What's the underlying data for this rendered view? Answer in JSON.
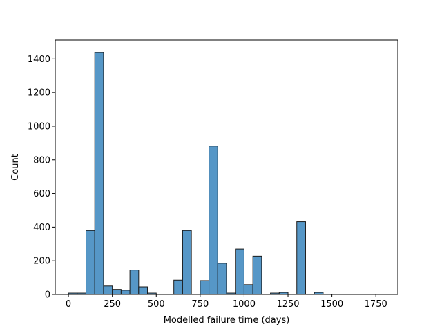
{
  "chart_data": {
    "type": "bar",
    "title": "",
    "xlabel": "Modelled failure time (days)",
    "ylabel": "Count",
    "xlim": [
      -75,
      1875
    ],
    "ylim": [
      0,
      1512
    ],
    "bin_width": 50,
    "bar_color": "#5697c7",
    "edge_color": "#1a1a1a",
    "grid": false,
    "legend": "none",
    "x_ticks": [
      0,
      250,
      500,
      750,
      1000,
      1250,
      1500,
      1750
    ],
    "y_ticks": [
      0,
      200,
      400,
      600,
      800,
      1000,
      1200,
      1400
    ],
    "x_tick_labels": [
      "0",
      "250",
      "500",
      "750",
      "1000",
      "1250",
      "1500",
      "1750"
    ],
    "y_tick_labels": [
      "0",
      "200",
      "400",
      "600",
      "800",
      "1000",
      "1200",
      "1400"
    ],
    "bins": [
      {
        "x0": 0,
        "x1": 50,
        "count": 8
      },
      {
        "x0": 50,
        "x1": 100,
        "count": 8
      },
      {
        "x0": 100,
        "x1": 150,
        "count": 380
      },
      {
        "x0": 150,
        "x1": 200,
        "count": 1438
      },
      {
        "x0": 200,
        "x1": 250,
        "count": 50
      },
      {
        "x0": 250,
        "x1": 300,
        "count": 30
      },
      {
        "x0": 300,
        "x1": 350,
        "count": 25
      },
      {
        "x0": 350,
        "x1": 400,
        "count": 145
      },
      {
        "x0": 400,
        "x1": 450,
        "count": 45
      },
      {
        "x0": 450,
        "x1": 500,
        "count": 8
      },
      {
        "x0": 500,
        "x1": 550,
        "count": 0
      },
      {
        "x0": 550,
        "x1": 600,
        "count": 0
      },
      {
        "x0": 600,
        "x1": 650,
        "count": 85
      },
      {
        "x0": 650,
        "x1": 700,
        "count": 380
      },
      {
        "x0": 700,
        "x1": 750,
        "count": 0
      },
      {
        "x0": 750,
        "x1": 800,
        "count": 82
      },
      {
        "x0": 800,
        "x1": 850,
        "count": 882
      },
      {
        "x0": 850,
        "x1": 900,
        "count": 185
      },
      {
        "x0": 900,
        "x1": 950,
        "count": 8
      },
      {
        "x0": 950,
        "x1": 1000,
        "count": 270
      },
      {
        "x0": 1000,
        "x1": 1050,
        "count": 58
      },
      {
        "x0": 1050,
        "x1": 1100,
        "count": 228
      },
      {
        "x0": 1100,
        "x1": 1150,
        "count": 0
      },
      {
        "x0": 1150,
        "x1": 1200,
        "count": 8
      },
      {
        "x0": 1200,
        "x1": 1250,
        "count": 12
      },
      {
        "x0": 1250,
        "x1": 1300,
        "count": 0
      },
      {
        "x0": 1300,
        "x1": 1350,
        "count": 432
      },
      {
        "x0": 1350,
        "x1": 1400,
        "count": 0
      },
      {
        "x0": 1400,
        "x1": 1450,
        "count": 12
      },
      {
        "x0": 1450,
        "x1": 1500,
        "count": 0
      },
      {
        "x0": 1500,
        "x1": 1550,
        "count": 0
      },
      {
        "x0": 1550,
        "x1": 1600,
        "count": 0
      },
      {
        "x0": 1600,
        "x1": 1650,
        "count": 0
      },
      {
        "x0": 1650,
        "x1": 1700,
        "count": 0
      },
      {
        "x0": 1700,
        "x1": 1750,
        "count": 0
      },
      {
        "x0": 1750,
        "x1": 1800,
        "count": 0
      }
    ]
  }
}
